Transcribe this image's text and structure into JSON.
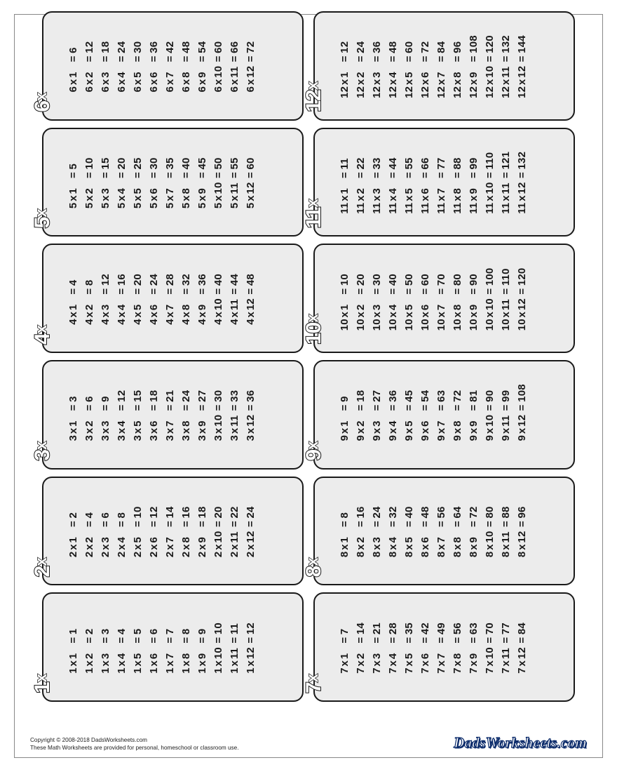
{
  "tables": [
    {
      "n": 1,
      "header": "1",
      "facts": []
    },
    {
      "n": 2,
      "header": "2",
      "facts": []
    },
    {
      "n": 3,
      "header": "3",
      "facts": []
    },
    {
      "n": 4,
      "header": "4",
      "facts": []
    },
    {
      "n": 5,
      "header": "5",
      "facts": []
    },
    {
      "n": 6,
      "header": "6",
      "facts": []
    },
    {
      "n": 7,
      "header": "7",
      "facts": []
    },
    {
      "n": 8,
      "header": "8",
      "facts": []
    },
    {
      "n": 9,
      "header": "9",
      "facts": []
    },
    {
      "n": 10,
      "header": "10",
      "facts": []
    },
    {
      "n": 11,
      "header": "11",
      "facts": []
    },
    {
      "n": 12,
      "header": "12",
      "facts": []
    }
  ],
  "multiplier_range": {
    "from": 1,
    "to": 12
  },
  "operator_symbol": "x",
  "equals_symbol": "=",
  "styling": {
    "card_bg": "#ececec",
    "card_border": "#1a1a1a",
    "card_border_width": 2,
    "card_radius": 14,
    "page_border": "#888888",
    "header_fill": "#ffffff",
    "header_stroke": "#1a1a1a",
    "header_fontsize": 30,
    "fact_fontsize": 15,
    "fact_fontweight": 700,
    "fact_color": "#1a1a1a",
    "grid_cols": 6,
    "grid_rows": 2,
    "rotation_deg": -90
  },
  "footer": {
    "copyright": "Copyright © 2008-2018 DadsWorksheets.com",
    "note": "These Math Worksheets are provided for personal, homeschool or classroom use.",
    "brand": "DadsWorksheets.com"
  }
}
